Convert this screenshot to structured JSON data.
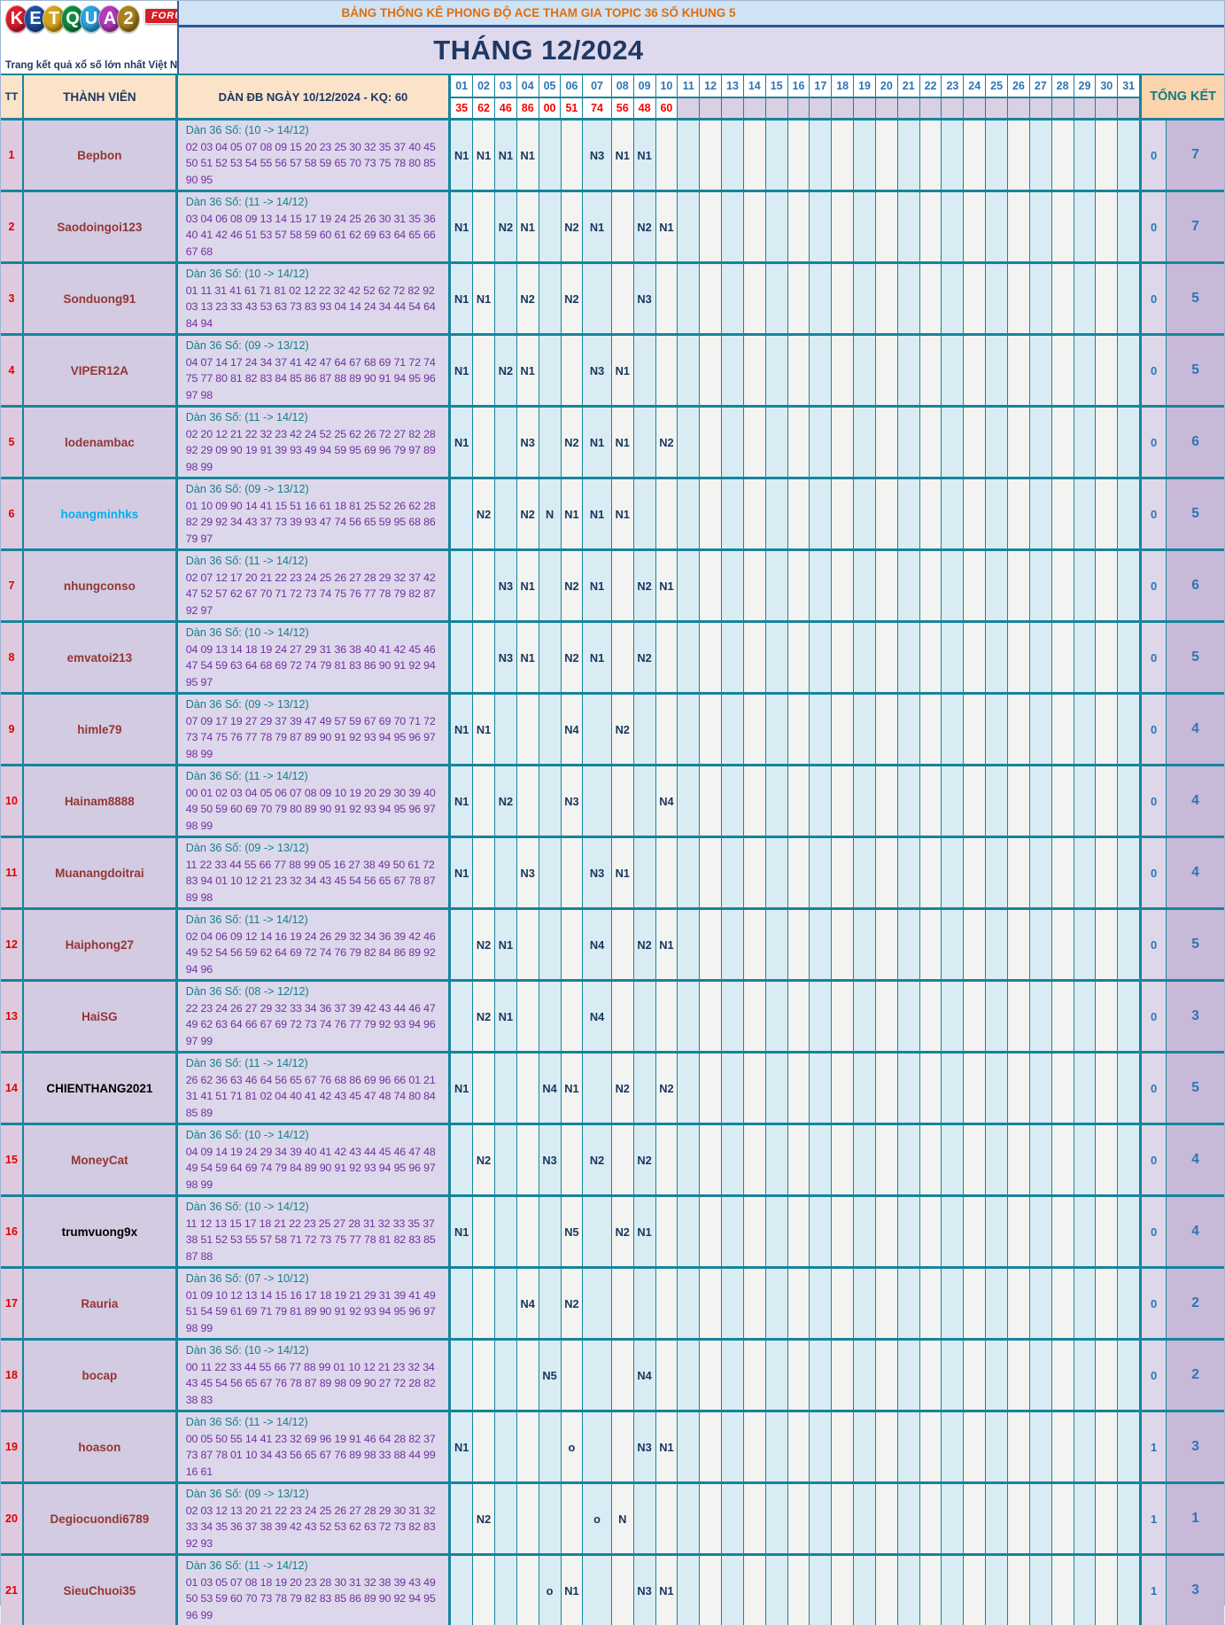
{
  "logo": {
    "brand": "KETQUA2",
    "letters": [
      {
        "ch": "K",
        "color": "#d81e2c"
      },
      {
        "ch": "E",
        "color": "#1d4f9e"
      },
      {
        "ch": "T",
        "color": "#d6a31f"
      },
      {
        "ch": "Q",
        "color": "#0f8a3e"
      },
      {
        "ch": "U",
        "color": "#2aa3dc"
      },
      {
        "ch": "A",
        "color": "#b03cb8"
      },
      {
        "ch": "2",
        "color": "#a8821e"
      }
    ],
    "badge": "FORUM",
    "tagline": "Trang kết quả xổ số lớn nhất Việt Nam"
  },
  "header": {
    "title": "BẢNG THỐNG KÊ PHONG ĐỘ ACE THAM GIA TOPIC 36 SỐ KHUNG 5",
    "month_title": "THÁNG 12/2024",
    "col_tt": "TT",
    "col_member": "THÀNH VIÊN",
    "col_dan": "DÀN ĐB NGÀY 10/12/2024 - KQ: 60",
    "col_total": "TỔNG KẾT",
    "days": [
      "01",
      "02",
      "03",
      "04",
      "05",
      "06",
      "07",
      "08",
      "09",
      "10",
      "11",
      "12",
      "13",
      "14",
      "15",
      "16",
      "17",
      "18",
      "19",
      "20",
      "21",
      "22",
      "23",
      "24",
      "25",
      "26",
      "27",
      "28",
      "29",
      "30",
      "31"
    ],
    "results": [
      "35",
      "62",
      "46",
      "86",
      "00",
      "51",
      "74",
      "56",
      "48",
      "60"
    ]
  },
  "colors": {
    "member_default": "#943634",
    "accent_teal": "#17849c",
    "mark_navy": "#17365d",
    "result_red": "#fe0000"
  },
  "rows": [
    {
      "tt": "1",
      "member": "Bepbon",
      "dan_title": "Dàn 36 Số: (10 -> 14/12)",
      "dan_lines": [
        "02 03 04 05 07 08 09 15 20 23 25 30 32 35 37 40 45",
        "50 51 52 53 54 55 56 57 58 59 65 70 73 75 78 80 85",
        "90 95"
      ],
      "marks": {
        "01": "N1",
        "02": "N1",
        "03": "N1",
        "04": "N1",
        "07": "N3",
        "08": "N1",
        "09": "N1"
      },
      "total_o": "0",
      "total_n": "7"
    },
    {
      "tt": "2",
      "member": "Saodoingoi123",
      "dan_title": "Dàn 36 Số: (11 -> 14/12)",
      "dan_lines": [
        "03 04 06 08 09 13 14 15 17 19 24 25 26 30 31 35 36",
        "40 41 42 46 51 53 57 58 59 60 61 62 69 63 64 65 66",
        "67 68"
      ],
      "marks": {
        "01": "N1",
        "03": "N2",
        "04": "N1",
        "06": "N2",
        "07": "N1",
        "09": "N2",
        "10": "N1"
      },
      "total_o": "0",
      "total_n": "7"
    },
    {
      "tt": "3",
      "member": "Sonduong91",
      "dan_title": "Dàn 36 Số: (10 -> 14/12)",
      "dan_lines": [
        "01 11 31 41 61 71 81 02 12 22 32 42 52 62 72 82 92",
        "03 13 23 33 43 53 63 73 83 93 04 14 24 34 44 54 64",
        "84 94"
      ],
      "marks": {
        "01": "N1",
        "02": "N1",
        "04": "N2",
        "06": "N2",
        "09": "N3"
      },
      "total_o": "0",
      "total_n": "5"
    },
    {
      "tt": "4",
      "member": "VIPER12A",
      "dan_title": "Dàn 36 Số: (09 -> 13/12)",
      "dan_lines": [
        "04 07 14 17 24 34 37 41 42 47 64 67 68 69 71 72 74",
        "75 77 80 81 82 83 84 85 86 87 88 89 90 91 94 95 96",
        "97 98"
      ],
      "marks": {
        "01": "N1",
        "03": "N2",
        "04": "N1",
        "07": "N3",
        "08": "N1"
      },
      "total_o": "0",
      "total_n": "5"
    },
    {
      "tt": "5",
      "member": "lodenambac",
      "dan_title": "Dàn 36 Số: (11 -> 14/12)",
      "dan_lines": [
        "02 20 12 21 22 32 23 42 24 52 25 62 26 72 27 82 28",
        "92 29 09 90 19 91 39 93 49 94 59 95 69 96 79 97 89",
        "98 99"
      ],
      "marks": {
        "01": "N1",
        "04": "N3",
        "06": "N2",
        "07": "N1",
        "08": "N1",
        "10": "N2"
      },
      "total_o": "0",
      "total_n": "6"
    },
    {
      "tt": "6",
      "member": "hoangminhks",
      "name_color": "#00b0f0",
      "dan_title": "Dàn 36 Số: (09 -> 13/12)",
      "dan_lines": [
        "01 10 09 90 14 41 15 51 16 61 18 81 25 52 26 62 28",
        "82 29 92 34 43 37 73 39 93 47 74 56 65 59 95 68 86",
        "79 97"
      ],
      "marks": {
        "02": "N2",
        "04": "N2",
        "05": "N",
        "06": "N1",
        "07": "N1",
        "08": "N1"
      },
      "total_o": "0",
      "total_n": "5"
    },
    {
      "tt": "7",
      "member": "nhungconso",
      "dan_title": "Dàn 36 Số: (11 -> 14/12)",
      "dan_lines": [
        "02 07 12 17 20 21 22 23 24 25 26 27 28 29 32 37 42",
        "47 52 57 62 67 70 71 72 73 74 75 76 77 78 79 82 87",
        "92 97"
      ],
      "marks": {
        "03": "N3",
        "04": "N1",
        "06": "N2",
        "07": "N1",
        "09": "N2",
        "10": "N1"
      },
      "total_o": "0",
      "total_n": "6"
    },
    {
      "tt": "8",
      "member": "emvatoi213",
      "dan_title": "Dàn 36 Số: (10 -> 14/12)",
      "dan_lines": [
        "04 09 13 14 18 19 24 27 29 31 36 38 40 41 42 45 46",
        "47 54 59 63 64 68 69 72 74 79 81 83 86 90 91 92 94",
        "95 97"
      ],
      "marks": {
        "03": "N3",
        "04": "N1",
        "06": "N2",
        "07": "N1",
        "09": "N2"
      },
      "total_o": "0",
      "total_n": "5"
    },
    {
      "tt": "9",
      "member": "himle79",
      "dan_title": "Dàn 36 Số: (09 -> 13/12)",
      "dan_lines": [
        "07 09 17 19 27 29 37 39 47 49 57 59 67 69 70 71 72",
        "73 74 75 76 77 78 79 87 89 90 91 92 93 94 95 96 97",
        "98 99"
      ],
      "marks": {
        "01": "N1",
        "02": "N1",
        "06": "N4",
        "08": "N2"
      },
      "total_o": "0",
      "total_n": "4"
    },
    {
      "tt": "10",
      "member": "Hainam8888",
      "dan_title": "Dàn 36 Số: (11 -> 14/12)",
      "dan_lines": [
        "00 01 02 03 04 05 06 07 08 09 10 19 20 29 30 39 40",
        "49 50 59 60 69 70 79 80 89 90 91 92 93 94 95 96 97",
        "98 99"
      ],
      "marks": {
        "01": "N1",
        "03": "N2",
        "06": "N3",
        "10": "N4"
      },
      "total_o": "0",
      "total_n": "4"
    },
    {
      "tt": "11",
      "member": "Muanangdoitrai",
      "dan_title": "Dàn 36 Số: (09 -> 13/12)",
      "dan_lines": [
        "11 22 33 44 55 66 77 88 99 05 16 27 38 49 50 61 72",
        "83 94 01 10 12 21 23 32 34 43 45 54 56 65 67 78 87",
        "89 98"
      ],
      "marks": {
        "01": "N1",
        "04": "N3",
        "07": "N3",
        "08": "N1"
      },
      "total_o": "0",
      "total_n": "4"
    },
    {
      "tt": "12",
      "member": "Haiphong27",
      "dan_title": "Dàn 36 Số: (11 -> 14/12)",
      "dan_lines": [
        "02 04 06 09 12 14 16 19 24 26 29 32 34 36 39 42 46",
        "49 52 54 56 59 62 64 69 72 74 76 79 82 84 86 89 92",
        "94 96"
      ],
      "marks": {
        "02": "N2",
        "03": "N1",
        "07": "N4",
        "09": "N2",
        "10": "N1"
      },
      "total_o": "0",
      "total_n": "5"
    },
    {
      "tt": "13",
      "member": "HaiSG",
      "dan_title": "Dàn 36 Số: (08 -> 12/12)",
      "dan_lines": [
        "22 23 24 26 27 29 32 33 34 36 37 39 42 43 44 46 47",
        "49 62 63 64 66 67 69 72 73 74 76 77 79 92 93 94 96",
        "97 99"
      ],
      "marks": {
        "02": "N2",
        "03": "N1",
        "07": "N4"
      },
      "total_o": "0",
      "total_n": "3"
    },
    {
      "tt": "14",
      "member": "CHIENTHANG2021",
      "name_color": "#000000",
      "dan_title": "Dàn 36 Số: (11 -> 14/12)",
      "dan_lines": [
        "26 62 36 63 46 64 56 65 67 76 68 86 69 96 66 01 21",
        "31 41 51 71 81 02 04 40 41 42 43 45 47 48 74 80 84",
        "85 89"
      ],
      "marks": {
        "01": "N1",
        "05": "N4",
        "06": "N1",
        "08": "N2",
        "10": "N2"
      },
      "total_o": "0",
      "total_n": "5"
    },
    {
      "tt": "15",
      "member": "MoneyCat",
      "dan_title": "Dàn 36 Số: (10 -> 14/12)",
      "dan_lines": [
        "04 09 14 19 24 29 34 39 40 41 42 43 44 45 46 47 48",
        "49 54 59 64 69 74 79 84 89 90 91 92 93 94 95 96 97",
        "98 99"
      ],
      "marks": {
        "02": "N2",
        "05": "N3",
        "07": "N2",
        "09": "N2"
      },
      "total_o": "0",
      "total_n": "4"
    },
    {
      "tt": "16",
      "member": "trumvuong9x",
      "name_color": "#000000",
      "dan_title": "Dàn 36 Số: (10 -> 14/12)",
      "dan_lines": [
        "11 12 13 15 17 18 21 22 23 25 27 28 31 32 33 35 37",
        "38 51 52 53 55 57 58 71 72 73 75 77 78 81 82 83 85",
        "87 88"
      ],
      "marks": {
        "01": "N1",
        "06": "N5",
        "08": "N2",
        "09": "N1"
      },
      "total_o": "0",
      "total_n": "4"
    },
    {
      "tt": "17",
      "member": "Rauria",
      "dan_title": "Dàn 36 Số: (07 -> 10/12)",
      "dan_lines": [
        "01 09 10 12 13 14 15 16 17 18 19 21 29 31 39 41 49",
        "51 54 59 61 69 71 79 81 89 90 91 92 93 94 95 96 97",
        "98 99"
      ],
      "marks": {
        "04": "N4",
        "06": "N2"
      },
      "total_o": "0",
      "total_n": "2"
    },
    {
      "tt": "18",
      "member": "bocap",
      "dan_title": "Dàn 36 Số: (10 -> 14/12)",
      "dan_lines": [
        "00 11 22 33 44 55 66 77 88 99 01 10 12 21 23 32 34",
        "43 45 54 56 65 67 76 78 87 89 98 09 90 27 72 28 82",
        "38 83"
      ],
      "marks": {
        "05": "N5",
        "09": "N4"
      },
      "total_o": "0",
      "total_n": "2"
    },
    {
      "tt": "19",
      "member": "hoason",
      "dan_title": "Dàn 36 Số: (11 -> 14/12)",
      "dan_lines": [
        "00 05 50 55 14 41 23 32 69 96 19 91 46 64 28 82 37",
        "73 87 78 01 10 34 43 56 65 67 76 89 98 33 88 44 99",
        "16 61"
      ],
      "marks": {
        "01": "N1",
        "06": "o",
        "09": "N3",
        "10": "N1"
      },
      "total_o": "1",
      "total_n": "3"
    },
    {
      "tt": "20",
      "member": "Degiocuondi6789",
      "dan_title": "Dàn 36 Số: (09 -> 13/12)",
      "dan_lines": [
        "02 03 12 13 20 21 22 23 24 25 26 27 28 29 30 31 32",
        "33 34 35 36 37 38 39 42 43 52 53 62 63 72 73 82 83",
        "92 93"
      ],
      "marks": {
        "02": "N2",
        "07": "o",
        "08": "N"
      },
      "total_o": "1",
      "total_n": "1"
    },
    {
      "tt": "21",
      "member": "SieuChuoi35",
      "dan_title": "Dàn 36 Số: (11 -> 14/12)",
      "dan_lines": [
        "01 03 05 07 08 18 19 20 23 28 30 31 32 38 39 43 49",
        "50 53 59 60 70 73 78 79 82 83 85 86 89 90 92 94 95",
        "96 99"
      ],
      "marks": {
        "05": "o",
        "06": "N1",
        "09": "N3",
        "10": "N1"
      },
      "total_o": "1",
      "total_n": "3"
    }
  ]
}
